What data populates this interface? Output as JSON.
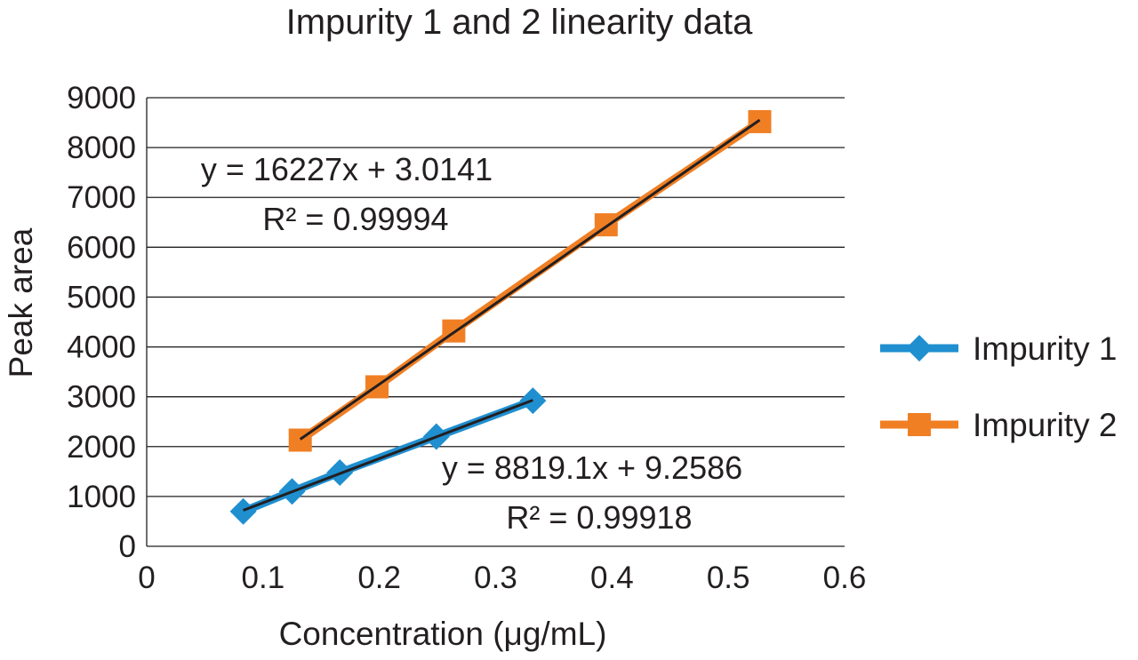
{
  "chart_data": {
    "type": "scatter",
    "title": "Impurity 1 and 2 linearity data",
    "xlabel": "Concentration (μg/mL)",
    "ylabel": "Peak area",
    "xlim": [
      0,
      0.6
    ],
    "ylim": [
      0,
      9000
    ],
    "x_ticks": [
      "0",
      "0.1",
      "0.2",
      "0.3",
      "0.4",
      "0.5",
      "0.6"
    ],
    "y_ticks": [
      "0",
      "1000",
      "2000",
      "3000",
      "4000",
      "5000",
      "6000",
      "7000",
      "8000",
      "9000"
    ],
    "grid": "horizontal",
    "legend_position": "right",
    "series": [
      {
        "name": "Impurity 1",
        "marker": "diamond",
        "color": "#1f8fd0",
        "x": [
          0.083,
          0.125,
          0.166,
          0.249,
          0.332
        ],
        "y": [
          700,
          1100,
          1480,
          2200,
          2920
        ],
        "trendline": {
          "equation": "y = 8819.1x + 9.2586",
          "r2": "R² = 0.99918"
        }
      },
      {
        "name": "Impurity 2",
        "marker": "square",
        "color": "#f07f24",
        "x": [
          0.132,
          0.198,
          0.264,
          0.395,
          0.527
        ],
        "y": [
          2130,
          3200,
          4320,
          6450,
          8520
        ],
        "trendline": {
          "equation": "y = 16227x + 3.0141",
          "r2": "R² = 0.99994"
        }
      }
    ]
  }
}
